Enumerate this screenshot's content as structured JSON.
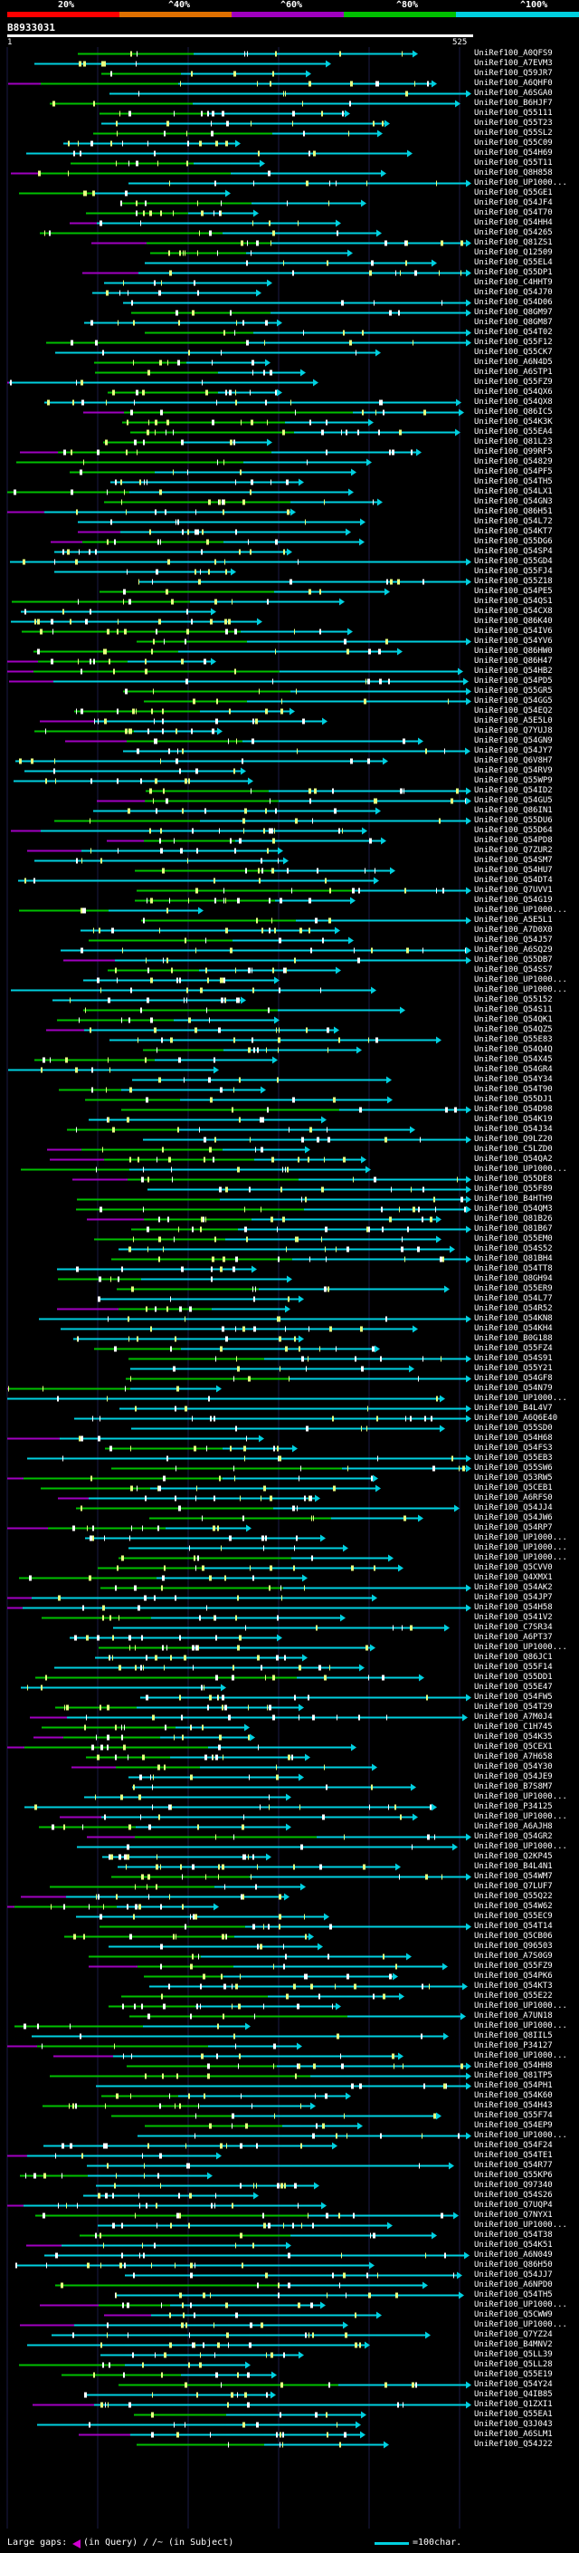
{
  "legend": {
    "ticks": [
      "20%",
      "^40%",
      "^60%",
      "^80%",
      "^100%"
    ],
    "colors": [
      "#ff0000",
      "#e07000",
      "#a000c0",
      "#00c000",
      "#00d0e0"
    ]
  },
  "query": {
    "id": "B8933031",
    "start": "1",
    "end": "525"
  },
  "footer": {
    "large_gaps": "Large gaps:",
    "in_query": "(in Query)",
    "separator": "/",
    "in_subject": "(in Subject)",
    "scale": "=100char."
  },
  "hits": [
    "UniRef100_A0QFS9",
    "UniRef100_A7EVM3",
    "UniRef100_Q59JR7",
    "UniRef100_A6QHF0",
    "UniRef100_A6SGA0",
    "UniRef100_B6HJF7",
    "UniRef100_Q55111",
    "UniRef100_Q55T23",
    "UniRef100_Q55SL2",
    "UniRef100_Q55C09",
    "UniRef100_Q54H69",
    "UniRef100_Q55T11",
    "UniRef100_Q8H858",
    "UniRef100_UP1000...",
    "UniRef100_Q55GE1",
    "UniRef100_Q54JF4",
    "UniRef100_Q54T70",
    "UniRef100_Q54HH4",
    "UniRef100_Q54265",
    "UniRef100_Q81ZS1",
    "UniRef100_Q12509",
    "UniRef100_Q55EL4",
    "UniRef100_Q55DP1",
    "UniRef100_C4HHT9",
    "UniRef100_Q54J70",
    "UniRef100_Q54D06",
    "UniRef100_Q8GM97",
    "UniRef100_Q8GM87",
    "UniRef100_Q54T02",
    "UniRef100_Q55F12",
    "UniRef100_Q55CK7",
    "UniRef100_A6N4D5",
    "UniRef100_A6STP1",
    "UniRef100_Q55FZ9",
    "UniRef100_Q54QX6",
    "UniRef100_Q54QX8",
    "UniRef100_Q86IC5",
    "UniRef100_Q54K3K",
    "UniRef100_Q55EA4",
    "UniRef100_Q81L23",
    "UniRef100_Q99RF5",
    "UniRef100_Q54829",
    "UniRef100_Q54PF5",
    "UniRef100_Q54TH5",
    "UniRef100_Q54LX1",
    "UniRef100_Q54GN3",
    "UniRef100_Q86H51",
    "UniRef100_Q54L72",
    "UniRef100_Q54KT7",
    "UniRef100_Q55DG6",
    "UniRef100_Q54SP4",
    "UniRef100_Q55GD4",
    "UniRef100_Q55FJ4",
    "UniRef100_Q55Z18",
    "UniRef100_Q54PE5",
    "UniRef100_Q54QS1",
    "UniRef100_Q54CX8",
    "UniRef100_Q86K40",
    "UniRef100_Q54IV6",
    "UniRef100_Q54YV6",
    "UniRef100_Q86HW0",
    "UniRef100_Q86H47",
    "UniRef100_Q54HB2",
    "UniRef100_Q54PD5",
    "UniRef100_Q55GR5",
    "UniRef100_Q54GG5",
    "UniRef100_Q54EQ2",
    "UniRef100_A5E5L0",
    "UniRef100_Q7YUJ8",
    "UniRef100_Q54GN9",
    "UniRef100_Q54JY7",
    "UniRef100_Q6V8H7",
    "UniRef100_Q54RV9",
    "UniRef100_Q55WP9",
    "UniRef100_Q54ID2",
    "UniRef100_Q54GU5",
    "UniRef100_Q86IN1",
    "UniRef100_Q55DU6",
    "UniRef100_Q55D64",
    "UniRef100_Q54PD8",
    "UniRef100_Q7ZUR2",
    "UniRef100_Q54SM7",
    "UniRef100_Q54HU7",
    "UniRef100_Q54DT4",
    "UniRef100_Q7UVV1",
    "UniRef100_Q54G19",
    "UniRef100_UP1000...",
    "UniRef100_A5E5L1",
    "UniRef100_A7D0X0",
    "UniRef100_Q54J57",
    "UniRef100_A6SQ29",
    "UniRef100_Q55DB7",
    "UniRef100_Q54SS7",
    "UniRef100_UP1000...",
    "UniRef100_UP1000...",
    "UniRef100_Q55152",
    "UniRef100_Q54S11",
    "UniRef100_Q54QK1",
    "UniRef100_Q54QZ5",
    "UniRef100_Q55E83",
    "UniRef100_Q54Q4Q",
    "UniRef100_Q54X45",
    "UniRef100_Q54GR4",
    "UniRef100_Q54Y34",
    "UniRef100_Q54T90",
    "UniRef100_Q55DJ1",
    "UniRef100_Q54D98",
    "UniRef100_Q54K19",
    "UniRef100_Q54J34",
    "UniRef100_Q9LZ20",
    "UniRef100_C5LZD0",
    "UniRef100_Q54QA2",
    "UniRef100_UP1000...",
    "UniRef100_Q55DE8",
    "UniRef100_Q55F89",
    "UniRef100_B4HTH9",
    "UniRef100_Q54QM3",
    "UniRef100_Q81B26",
    "UniRef100_Q81B67",
    "UniRef100_Q55EM0",
    "UniRef100_Q54S52",
    "UniRef100_Q81BH4",
    "UniRef100_Q54TT8",
    "UniRef100_Q8GH94",
    "UniRef100_Q55ER9",
    "UniRef100_Q54L77",
    "UniRef100_Q54R52",
    "UniRef100_Q54KN8",
    "UniRef100_Q54KH4",
    "UniRef100_B0G188",
    "UniRef100_Q55FZ4",
    "UniRef100_Q54S91",
    "UniRef100_Q55Y21",
    "UniRef100_Q54GF8",
    "UniRef100_Q54N79",
    "UniRef100_UP1000...",
    "UniRef100_B4L4V7",
    "UniRef100_A6Q6E40",
    "UniRef100_Q55SD0",
    "UniRef100_Q54H68",
    "UniRef100_Q54FS3",
    "UniRef100_Q55EB3",
    "UniRef100_Q55SW6",
    "UniRef100_Q53RW5",
    "UniRef100_Q5CEB1",
    "UniRef100_A6RFS0",
    "UniRef100_Q54JJ4",
    "UniRef100_Q54JW6",
    "UniRef100_Q54RP7",
    "UniRef100_UP1000...",
    "UniRef100_UP1000...",
    "UniRef100_UP1000...",
    "UniRef100_Q5CVV0",
    "UniRef100_Q4XMX1",
    "UniRef100_Q54AK2",
    "UniRef100_Q54JP7",
    "UniRef100_Q54H58",
    "UniRef100_Q541V2",
    "UniRef100_C7SR34",
    "UniRef100_A6PT37",
    "UniRef100_UP1000...",
    "UniRef100_Q86JC1",
    "UniRef100_Q55F14",
    "UniRef100_Q55DD1",
    "UniRef100_Q55E47",
    "UniRef100_Q54FW5",
    "UniRef100_Q54T29",
    "UniRef100_A7M0J4",
    "UniRef100_C1H745",
    "UniRef100_Q54K35",
    "UniRef100_Q5CEX1",
    "UniRef100_A7H658",
    "UniRef100_Q54Y30",
    "UniRef100_Q54JE9",
    "UniRef100_B7S8M7",
    "UniRef100_UP1000...",
    "UniRef100_P34125",
    "UniRef100_UP1000...",
    "UniRef100_A6AJH8",
    "UniRef100_Q54GR2",
    "UniRef100_UP1000...",
    "UniRef100_Q2KP45",
    "UniRef100_B4L4N1",
    "UniRef100_Q54WM7",
    "UniRef100_Q7LUF7",
    "UniRef100_Q55Q22",
    "UniRef100_Q54W62",
    "UniRef100_Q55EC9",
    "UniRef100_Q54T14",
    "UniRef100_Q5CB06",
    "UniRef100_Q96503",
    "UniRef100_A7S0G9",
    "UniRef100_Q55FZ9",
    "UniRef100_Q54PK6",
    "UniRef100_Q54KT3",
    "UniRef100_Q55E22",
    "UniRef100_UP1000...",
    "UniRef100_A7UN18",
    "UniRef100_UP1000...",
    "UniRef100_Q8IIL5",
    "UniRef100_P34127",
    "UniRef100_UP1000...",
    "UniRef100_Q54HH8",
    "UniRef100_Q81TP5",
    "UniRef100_Q54PH1",
    "UniRef100_Q54K60",
    "UniRef100_Q54H43",
    "UniRef100_Q55F74",
    "UniRef100_Q54EP9",
    "UniRef100_UP1000...",
    "UniRef100_Q54F24",
    "UniRef100_Q54TE1",
    "UniRef100_Q54R77",
    "UniRef100_Q55KP6",
    "UniRef100_Q97340",
    "UniRef100_Q54S26",
    "UniRef100_Q7UQP4",
    "UniRef100_Q7NYX1",
    "UniRef100_UP1000...",
    "UniRef100_Q54T38",
    "UniRef100_Q54K51",
    "UniRef100_A6N049",
    "UniRef100_Q86H50",
    "UniRef100_Q54JJ7",
    "UniRef100_A6NPD0",
    "UniRef100_Q54TH5",
    "UniRef100_UP1000...",
    "UniRef100_Q5CWW9",
    "UniRef100_UP1000...",
    "UniRef100_Q7YZ24",
    "UniRef100_B4MNV2",
    "UniRef100_Q5LL39",
    "UniRef100_Q5LL28",
    "UniRef100_Q55E19",
    "UniRef100_Q54Y24",
    "UniRef100_Q4IB85",
    "UniRef100_Q1ZXI1",
    "UniRef100_Q55EA1",
    "UniRef100_Q3J043",
    "UniRef100_A6SLM1",
    "UniRef100_Q54J22"
  ]
}
